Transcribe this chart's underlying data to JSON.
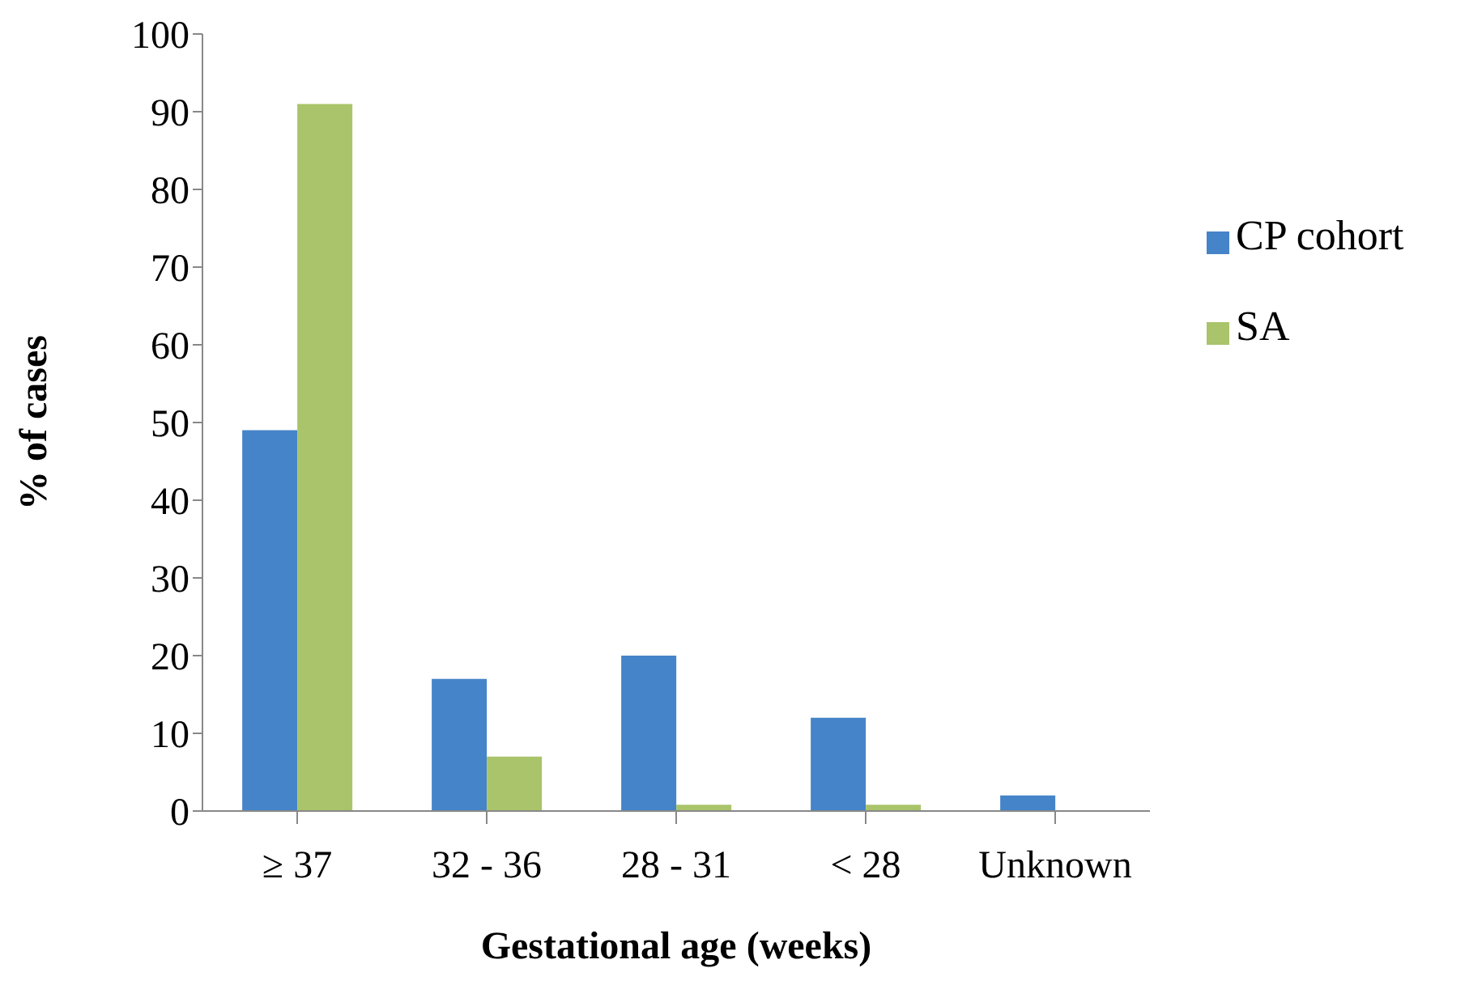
{
  "chart_data": {
    "type": "bar",
    "xlabel": "Gestational age (weeks)",
    "ylabel": "% of cases",
    "categories": [
      "≥ 37",
      "32 - 36",
      "28 - 31",
      "< 28",
      "Unknown"
    ],
    "series": [
      {
        "name": "CP cohort",
        "color": "#4584c8",
        "values": [
          49,
          17,
          20,
          12,
          2
        ]
      },
      {
        "name": "SA",
        "color": "#a9c46a",
        "values": [
          91,
          7,
          0.8,
          0.8,
          null
        ]
      }
    ],
    "ylim": [
      0,
      100
    ],
    "yticks": [
      0,
      10,
      20,
      30,
      40,
      50,
      60,
      70,
      80,
      90,
      100
    ],
    "grid": false,
    "legend": "right"
  }
}
